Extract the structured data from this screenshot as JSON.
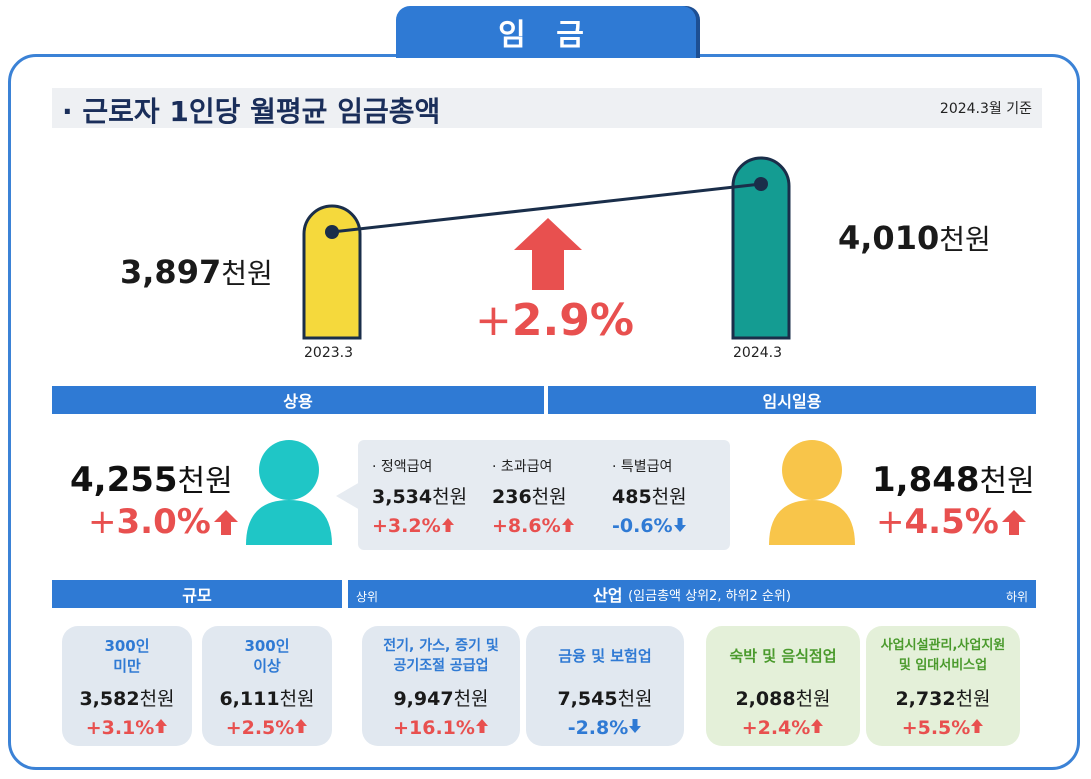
{
  "header": {
    "title": "임 금"
  },
  "subhead": {
    "title": "· 근로자 1인당 월평균 임금총액",
    "date": "2024.3월 기준"
  },
  "overall": {
    "prev": {
      "value": "3,897",
      "unit": "천원",
      "label": "2023.3"
    },
    "curr": {
      "value": "4,010",
      "unit": "천원",
      "label": "2024.3"
    },
    "change": {
      "sign": "+",
      "value": "2.9%"
    }
  },
  "sections": {
    "regular": "상용",
    "temporary": "임시일용",
    "size": "규모",
    "industry": "산업",
    "industry_note": "(임금총액 상위2, 하위2 순위)",
    "top": "상위",
    "bottom": "하위"
  },
  "regular": {
    "value": "4,255",
    "unit": "천원",
    "sign": "+",
    "pct": "3.0%",
    "items": [
      {
        "label": "· 정액급여",
        "value": "3,534",
        "unit": "천원",
        "pct": "+3.2%",
        "dir": "up"
      },
      {
        "label": "· 초과급여",
        "value": "236",
        "unit": "천원",
        "pct": "+8.6%",
        "dir": "up"
      },
      {
        "label": "· 특별급여",
        "value": "485",
        "unit": "천원",
        "pct": "-0.6%",
        "dir": "down"
      }
    ]
  },
  "temporary": {
    "value": "1,848",
    "unit": "천원",
    "sign": "+",
    "pct": "4.5%"
  },
  "size_cards": [
    {
      "name": "300인\n미만",
      "value": "3,582",
      "unit": "천원",
      "pct": "+3.1%",
      "dir": "up"
    },
    {
      "name": "300인\n이상",
      "value": "6,111",
      "unit": "천원",
      "pct": "+2.5%",
      "dir": "up"
    }
  ],
  "industry_cards": [
    {
      "name": "전기, 가스, 증기 및\n공기조절 공급업",
      "value": "9,947",
      "unit": "천원",
      "pct": "+16.1%",
      "dir": "up"
    },
    {
      "name": "금융 및 보험업",
      "value": "7,545",
      "unit": "천원",
      "pct": "-2.8%",
      "dir": "down"
    },
    {
      "name": "숙박 및 음식점업",
      "value": "2,088",
      "unit": "천원",
      "pct": "+2.4%",
      "dir": "up"
    },
    {
      "name": "사업시설관리,사업지원\n및 임대서비스업",
      "value": "2,732",
      "unit": "천원",
      "pct": "+5.5%",
      "dir": "up"
    }
  ],
  "colors": {
    "blue": "#2f7ad4",
    "red": "#e8504f",
    "yellow_bar": "#f5d93c",
    "teal_bar": "#149c92",
    "person_teal": "#1fc6c6",
    "person_yellow": "#f8c54a"
  }
}
